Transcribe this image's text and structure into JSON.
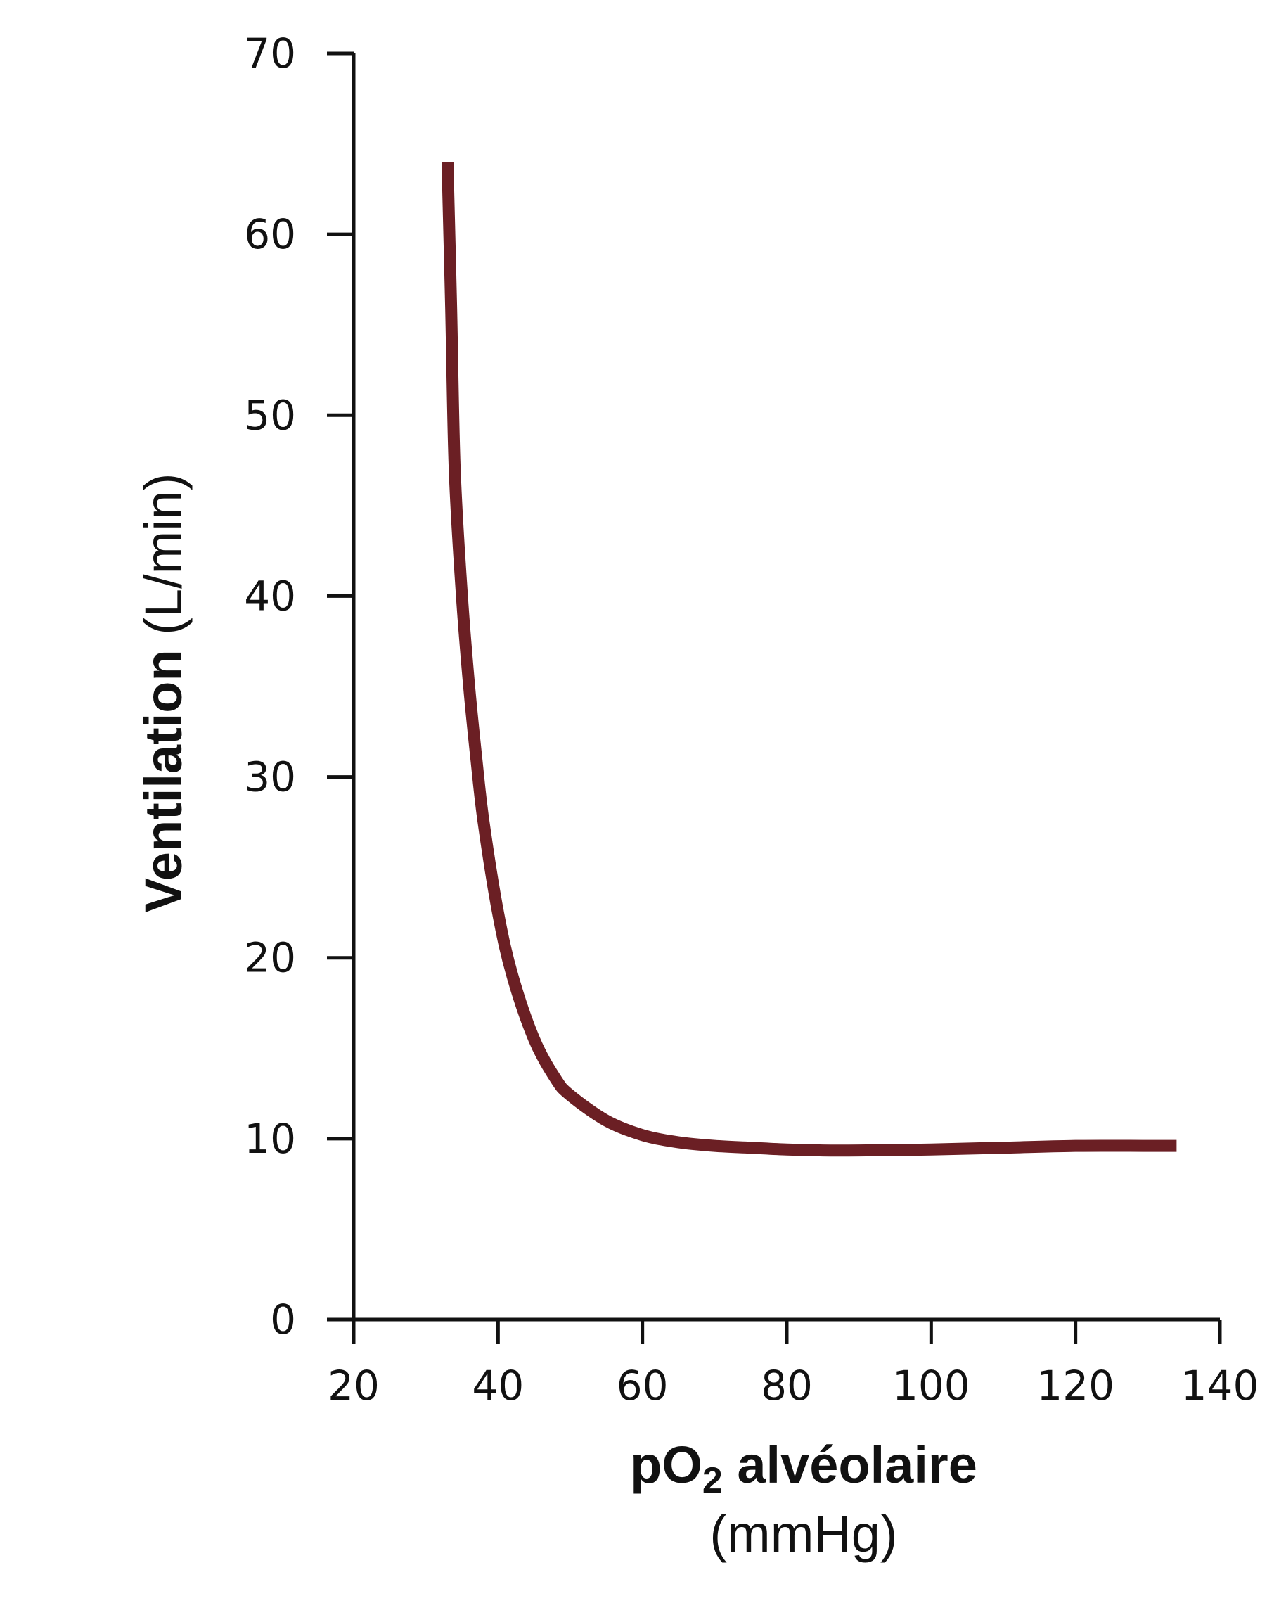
{
  "chart_data": {
    "type": "line",
    "title": "",
    "xlabel": {
      "main": "pO",
      "subscript": "2",
      "rest": " alvéolaire",
      "unit": "(mmHg)"
    },
    "ylabel": {
      "main": "Ventilation",
      "unit": " (L/min)"
    },
    "xlim": [
      20,
      140
    ],
    "ylim": [
      0,
      70
    ],
    "xticks": [
      "20",
      "40",
      "60",
      "80",
      "100",
      "120",
      "140"
    ],
    "yticks": [
      "0",
      "10",
      "20",
      "30",
      "40",
      "50",
      "60",
      "70"
    ],
    "grid": false,
    "series": [
      {
        "color": "#6b1f24",
        "x": [
          33,
          33.5,
          34,
          35,
          36,
          37,
          38,
          40,
          42,
          45,
          48,
          50,
          55,
          60,
          65,
          70,
          75,
          80,
          85,
          90,
          100,
          110,
          120,
          130,
          134
        ],
        "y": [
          64,
          56,
          47,
          40,
          35,
          31,
          27.5,
          22.5,
          19,
          15.5,
          13.3,
          12.4,
          11,
          10.2,
          9.8,
          9.6,
          9.5,
          9.4,
          9.35,
          9.35,
          9.4,
          9.5,
          9.6,
          9.6,
          9.6
        ]
      }
    ]
  }
}
